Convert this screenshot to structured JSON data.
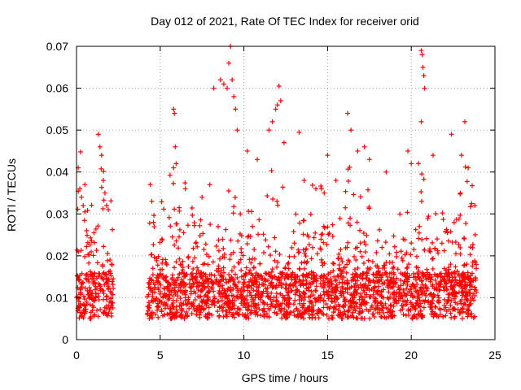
{
  "chart_data": {
    "type": "scatter",
    "title": "Day 012 of 2021, Rate Of TEC Index for receiver orid",
    "xlabel": "GPS time / hours",
    "ylabel": "ROTI / TECUs",
    "xlim": [
      0,
      25
    ],
    "ylim": [
      0,
      0.07
    ],
    "xticks": [
      "0",
      "5",
      "10",
      "15",
      "20",
      "25"
    ],
    "yticks": [
      "0",
      "0.01",
      "0.02",
      "0.03",
      "0.04",
      "0.05",
      "0.06",
      "0.07"
    ],
    "grid": true,
    "marker": "+",
    "color": "#ff0000",
    "data_gap_hours": [
      2.2,
      4.2
    ],
    "points": [
      [
        0.1,
        0.041
      ],
      [
        0.2,
        0.036
      ],
      [
        0.3,
        0.034
      ],
      [
        0.4,
        0.032
      ],
      [
        0.5,
        0.037
      ],
      [
        0.6,
        0.026
      ],
      [
        1.3,
        0.049
      ],
      [
        1.4,
        0.046
      ],
      [
        1.5,
        0.044
      ],
      [
        1.6,
        0.038
      ],
      [
        1.7,
        0.035
      ],
      [
        1.8,
        0.032
      ],
      [
        1.9,
        0.031
      ],
      [
        2.0,
        0.019
      ],
      [
        2.1,
        0.018
      ],
      [
        4.4,
        0.037
      ],
      [
        4.5,
        0.033
      ],
      [
        4.6,
        0.028
      ],
      [
        5.1,
        0.024
      ],
      [
        5.8,
        0.055
      ],
      [
        5.85,
        0.054
      ],
      [
        5.9,
        0.046
      ],
      [
        5.95,
        0.042
      ],
      [
        5.8,
        0.041
      ],
      [
        6.5,
        0.036
      ],
      [
        7.5,
        0.034
      ],
      [
        8.2,
        0.06
      ],
      [
        8.6,
        0.062
      ],
      [
        8.8,
        0.061
      ],
      [
        9.0,
        0.06
      ],
      [
        9.1,
        0.066
      ],
      [
        9.2,
        0.07
      ],
      [
        9.3,
        0.062
      ],
      [
        9.4,
        0.058
      ],
      [
        9.5,
        0.055
      ],
      [
        9.6,
        0.05
      ],
      [
        10.2,
        0.045
      ],
      [
        10.8,
        0.043
      ],
      [
        11.5,
        0.05
      ],
      [
        11.7,
        0.052
      ],
      [
        11.9,
        0.055
      ],
      [
        12.0,
        0.056
      ],
      [
        12.1,
        0.0605
      ],
      [
        12.2,
        0.057
      ],
      [
        12.4,
        0.047
      ],
      [
        13.3,
        0.0495
      ],
      [
        13.6,
        0.038
      ],
      [
        14.3,
        0.036
      ],
      [
        14.8,
        0.035
      ],
      [
        15.0,
        0.044
      ],
      [
        15.5,
        0.038
      ],
      [
        16.2,
        0.054
      ],
      [
        16.4,
        0.05
      ],
      [
        16.8,
        0.045
      ],
      [
        17.2,
        0.046
      ],
      [
        17.5,
        0.043
      ],
      [
        18.5,
        0.04
      ],
      [
        19.8,
        0.045
      ],
      [
        20.0,
        0.042
      ],
      [
        20.6,
        0.069
      ],
      [
        20.65,
        0.068
      ],
      [
        20.7,
        0.065
      ],
      [
        20.75,
        0.063
      ],
      [
        20.8,
        0.06
      ],
      [
        20.6,
        0.052
      ],
      [
        21.3,
        0.044
      ],
      [
        22.4,
        0.049
      ],
      [
        23.0,
        0.044
      ],
      [
        23.2,
        0.052
      ],
      [
        23.4,
        0.041
      ],
      [
        23.8,
        0.032
      ]
    ]
  }
}
